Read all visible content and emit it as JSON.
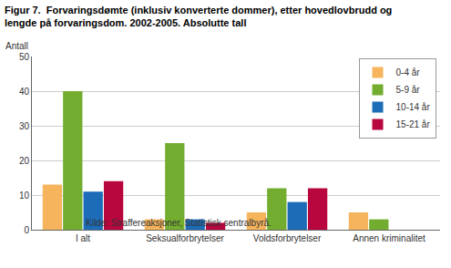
{
  "chart_data": {
    "type": "bar",
    "title": "Figur 7.  Forvaringsdømte (inklusiv konverterte dommer), etter hovedlovbrudd og lengde på forvaringsdom. 2002-2005. Absolutte tall",
    "y_label": "Antall",
    "source": "Kilde: Straffereaksjoner, Statistisk sentralbyrå.",
    "categories": [
      "I alt",
      "Seksualforbrytelser",
      "Voldsforbrytelser",
      "Annen kriminalitet"
    ],
    "series": [
      {
        "name": "0-4 år",
        "color": "#f6b45c",
        "values": [
          13,
          3,
          5,
          5
        ]
      },
      {
        "name": "5-9 år",
        "color": "#73ad2f",
        "values": [
          40,
          25,
          12,
          3
        ]
      },
      {
        "name": "10-14 år",
        "color": "#1d6cb8",
        "values": [
          11,
          3,
          8,
          0
        ]
      },
      {
        "name": "15-21 år",
        "color": "#b8063e",
        "values": [
          14,
          2,
          12,
          0
        ]
      }
    ],
    "ylim": [
      0,
      50
    ],
    "yticks": [
      0,
      10,
      20,
      30,
      40,
      50
    ],
    "grid": true,
    "legend": "top-right"
  }
}
